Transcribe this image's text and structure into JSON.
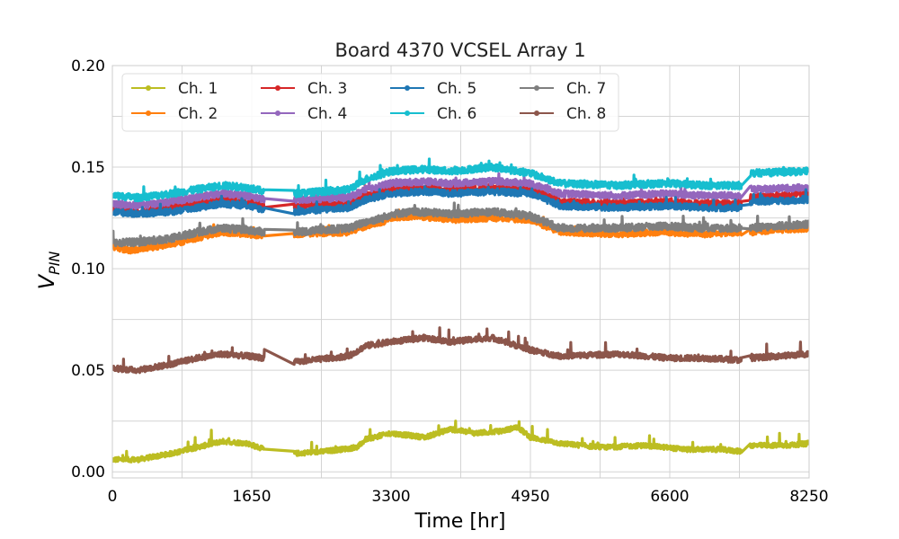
{
  "chart_data": {
    "type": "line",
    "title": "Board 4370 VCSEL Array 1",
    "xlabel": "Time [hr]",
    "ylabel": "V_PIN",
    "ylabel_main": "V",
    "ylabel_sub": "PIN",
    "xlim": [
      0,
      8250
    ],
    "ylim": [
      -0.003,
      0.2
    ],
    "xticks": [
      0,
      1650,
      3300,
      4950,
      6600,
      8250
    ],
    "xtick_labels": [
      "0",
      "1650",
      "3300",
      "4950",
      "6600",
      "8250"
    ],
    "yticks": [
      0.0,
      0.05,
      0.1,
      0.15,
      0.2
    ],
    "ytick_labels": [
      "0.00",
      "0.05",
      "0.10",
      "0.15",
      "0.20"
    ],
    "grid": true,
    "legend_position": "top-left",
    "legend_columns": 4,
    "gaps": [
      [
        1800,
        2150
      ],
      [
        7450,
        7550
      ]
    ],
    "series": [
      {
        "name": "Ch. 1",
        "color": "#bcbd22",
        "noise": 0.0012,
        "spike": 0.006,
        "x": [
          0,
          300,
          700,
          1000,
          1300,
          1600,
          1800,
          2150,
          2500,
          2900,
          3000,
          3300,
          3700,
          4000,
          4300,
          4600,
          4800,
          4950,
          5300,
          5800,
          6300,
          6800,
          7200,
          7450,
          7550,
          8000,
          8250
        ],
        "y": [
          0.006,
          0.006,
          0.009,
          0.012,
          0.015,
          0.014,
          0.011,
          0.009,
          0.01,
          0.012,
          0.016,
          0.019,
          0.017,
          0.021,
          0.019,
          0.02,
          0.022,
          0.017,
          0.014,
          0.012,
          0.013,
          0.011,
          0.011,
          0.01,
          0.013,
          0.013,
          0.014
        ]
      },
      {
        "name": "Ch. 2",
        "color": "#ff7f0e",
        "noise": 0.0015,
        "spike": 0.004,
        "x": [
          0,
          200,
          700,
          1000,
          1300,
          1600,
          1800,
          2150,
          2800,
          3000,
          3200,
          3300,
          3600,
          4000,
          4500,
          4950,
          5300,
          6000,
          6500,
          7000,
          7450,
          7550,
          8250
        ],
        "y": [
          0.111,
          0.109,
          0.112,
          0.115,
          0.118,
          0.117,
          0.116,
          0.117,
          0.118,
          0.121,
          0.123,
          0.125,
          0.126,
          0.124,
          0.125,
          0.124,
          0.118,
          0.117,
          0.118,
          0.117,
          0.118,
          0.118,
          0.12
        ]
      },
      {
        "name": "Ch. 3",
        "color": "#d62728",
        "noise": 0.0016,
        "spike": 0.004,
        "x": [
          0,
          300,
          700,
          1000,
          1300,
          1600,
          1800,
          2150,
          2800,
          3000,
          3300,
          3700,
          4000,
          4500,
          4950,
          5300,
          6000,
          6600,
          7000,
          7450,
          7550,
          8250
        ],
        "y": [
          0.13,
          0.128,
          0.13,
          0.132,
          0.134,
          0.133,
          0.131,
          0.131,
          0.132,
          0.136,
          0.139,
          0.14,
          0.139,
          0.14,
          0.139,
          0.133,
          0.132,
          0.133,
          0.132,
          0.132,
          0.135,
          0.137
        ]
      },
      {
        "name": "Ch. 4",
        "color": "#9467bd",
        "noise": 0.0016,
        "spike": 0.004,
        "x": [
          0,
          300,
          700,
          1000,
          1300,
          1600,
          1800,
          2150,
          2800,
          3000,
          3300,
          3700,
          4000,
          4500,
          4950,
          5300,
          6000,
          6600,
          7000,
          7450,
          7550,
          8250
        ],
        "y": [
          0.132,
          0.131,
          0.133,
          0.135,
          0.137,
          0.136,
          0.134,
          0.134,
          0.135,
          0.139,
          0.142,
          0.143,
          0.142,
          0.143,
          0.142,
          0.137,
          0.136,
          0.137,
          0.136,
          0.136,
          0.139,
          0.14
        ]
      },
      {
        "name": "Ch. 5",
        "color": "#1f77b4",
        "noise": 0.0016,
        "spike": 0.004,
        "x": [
          0,
          300,
          700,
          1000,
          1300,
          1600,
          1800,
          2150,
          2800,
          3000,
          3300,
          3700,
          4000,
          4500,
          4950,
          5300,
          6000,
          6600,
          7000,
          7450,
          7550,
          8250
        ],
        "y": [
          0.128,
          0.127,
          0.128,
          0.13,
          0.132,
          0.131,
          0.129,
          0.128,
          0.13,
          0.134,
          0.137,
          0.138,
          0.137,
          0.138,
          0.137,
          0.131,
          0.13,
          0.131,
          0.13,
          0.13,
          0.133,
          0.134
        ]
      },
      {
        "name": "Ch. 6",
        "color": "#17becf",
        "noise": 0.0017,
        "spike": 0.005,
        "x": [
          0,
          300,
          700,
          1000,
          1300,
          1600,
          1800,
          2150,
          2800,
          3000,
          3300,
          3700,
          4000,
          4500,
          4950,
          5300,
          6000,
          6600,
          7000,
          7450,
          7550,
          8250
        ],
        "y": [
          0.136,
          0.135,
          0.137,
          0.139,
          0.141,
          0.14,
          0.138,
          0.137,
          0.139,
          0.144,
          0.148,
          0.149,
          0.148,
          0.15,
          0.147,
          0.142,
          0.141,
          0.142,
          0.141,
          0.141,
          0.147,
          0.148
        ]
      },
      {
        "name": "Ch. 7",
        "color": "#7f7f7f",
        "noise": 0.0018,
        "spike": 0.006,
        "x": [
          0,
          300,
          700,
          1000,
          1300,
          1600,
          1800,
          2150,
          2800,
          3000,
          3200,
          3300,
          3600,
          4000,
          4500,
          4950,
          5300,
          6000,
          6500,
          7000,
          7450,
          7550,
          8250
        ],
        "y": [
          0.113,
          0.113,
          0.115,
          0.118,
          0.12,
          0.119,
          0.118,
          0.118,
          0.12,
          0.123,
          0.125,
          0.127,
          0.128,
          0.127,
          0.128,
          0.126,
          0.12,
          0.12,
          0.121,
          0.12,
          0.12,
          0.12,
          0.122
        ]
      },
      {
        "name": "Ch. 8",
        "color": "#8c564b",
        "noise": 0.0014,
        "spike": 0.006,
        "x": [
          0,
          300,
          700,
          1000,
          1300,
          1600,
          1800,
          2150,
          2800,
          3000,
          3300,
          3700,
          4000,
          4500,
          4950,
          5300,
          6000,
          6600,
          7000,
          7450,
          7550,
          8250
        ],
        "y": [
          0.051,
          0.05,
          0.053,
          0.056,
          0.058,
          0.057,
          0.056,
          0.054,
          0.057,
          0.062,
          0.064,
          0.066,
          0.064,
          0.066,
          0.06,
          0.057,
          0.058,
          0.056,
          0.056,
          0.055,
          0.056,
          0.058
        ]
      }
    ]
  }
}
